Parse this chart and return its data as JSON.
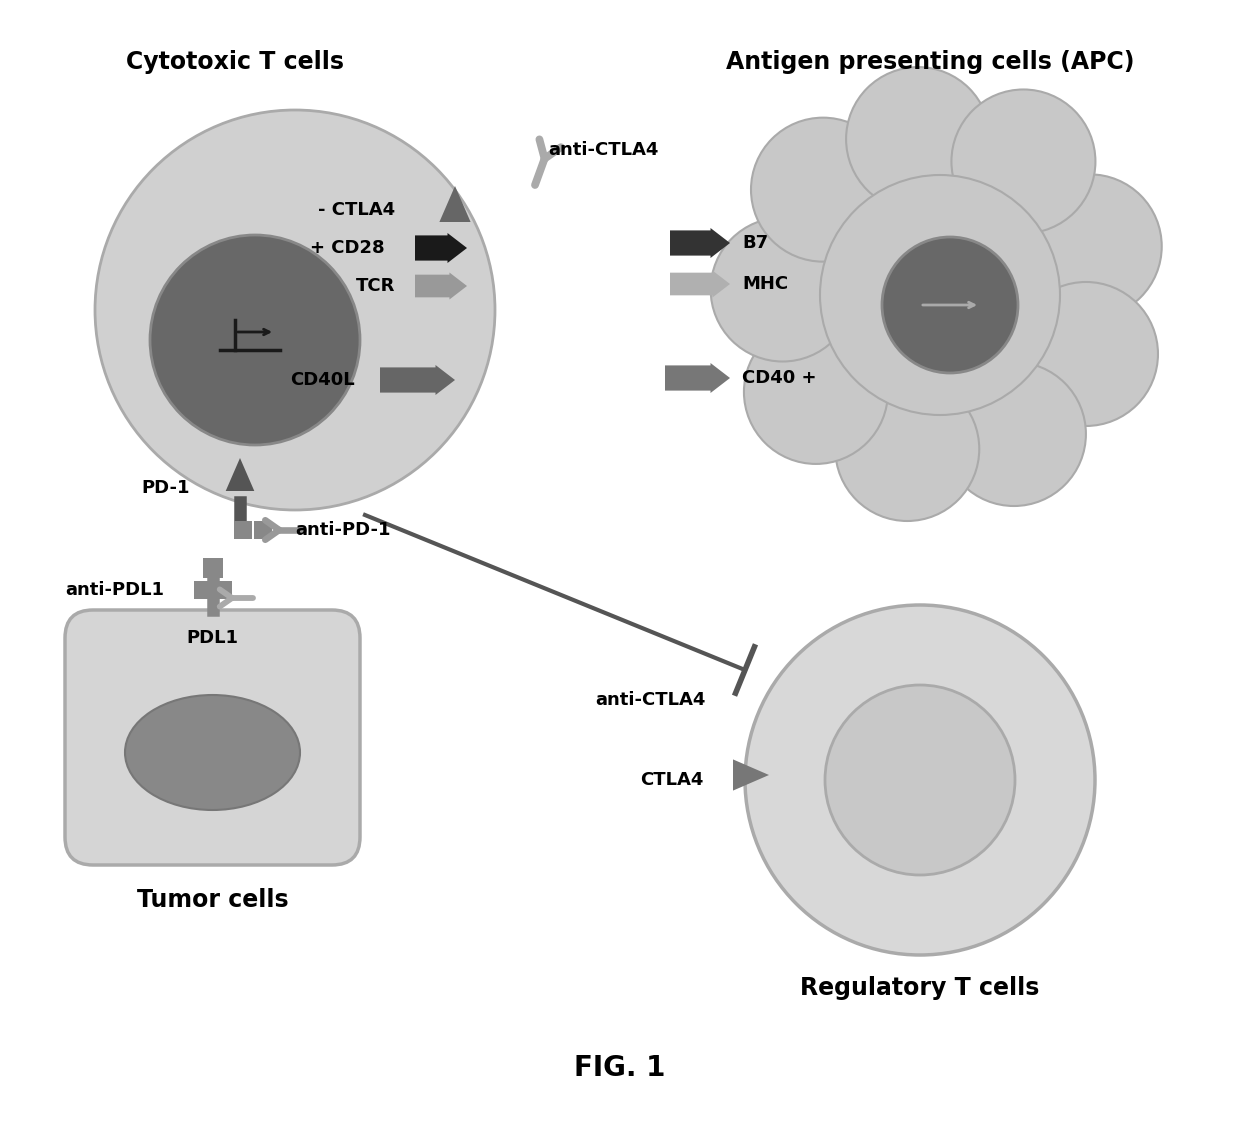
{
  "bg_color": "#ffffff",
  "title": "FIG. 1",
  "cell_light_gray": "#d0d0d0",
  "cell_medium_gray": "#b0b0b0",
  "cell_dark_gray": "#686868",
  "cell_nucleus_reg": "#c8c8c8",
  "arrow_black": "#1a1a1a",
  "arrow_dark": "#555555",
  "arrow_medium": "#808080",
  "arrow_light": "#b0b0b0",
  "text_color": "#000000",
  "labels": {
    "cytotoxic": "Cytotoxic T cells",
    "apc": "Antigen presenting cells (APC)",
    "tumor": "Tumor cells",
    "regulatory": "Regulatory T cells",
    "ctla4_neg": "- CTLA4",
    "cd28": "+ CD28",
    "tcr": "TCR",
    "cd40l": "CD40L",
    "pd1": "PD-1",
    "anti_pd1": "anti-PD-1",
    "anti_pdl1": "anti-PDL1",
    "anti_ctla4_top": "anti-CTLA4",
    "anti_ctla4_bot": "anti-CTLA4",
    "pdl1": "PDL1",
    "b7": "B7",
    "mhc": "MHC",
    "cd40": "CD40 +",
    "ctla4_reg": "CTLA4"
  }
}
